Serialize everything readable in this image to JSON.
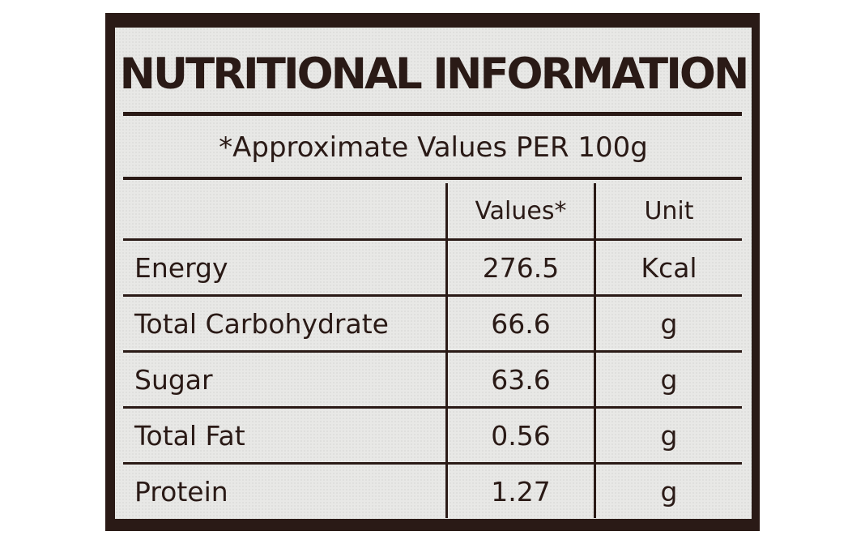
{
  "title": "NUTRITIONAL INFORMATION",
  "subtitle": "*Approximate Values PER 100g",
  "table": {
    "headers": [
      "",
      "Values*",
      "Unit"
    ],
    "rows": [
      {
        "name": "Energy",
        "value": "276.5",
        "unit": "Kcal"
      },
      {
        "name": "Total Carbohydrate",
        "value": "66.6",
        "unit": "g"
      },
      {
        "name": "Sugar",
        "value": "63.6",
        "unit": "g"
      },
      {
        "name": "Total Fat",
        "value": "0.56",
        "unit": "g"
      },
      {
        "name": "Protein",
        "value": "1.27",
        "unit": "g"
      }
    ]
  },
  "colors": {
    "ink": "#2a1a16",
    "paper": "#e8e8e6"
  }
}
